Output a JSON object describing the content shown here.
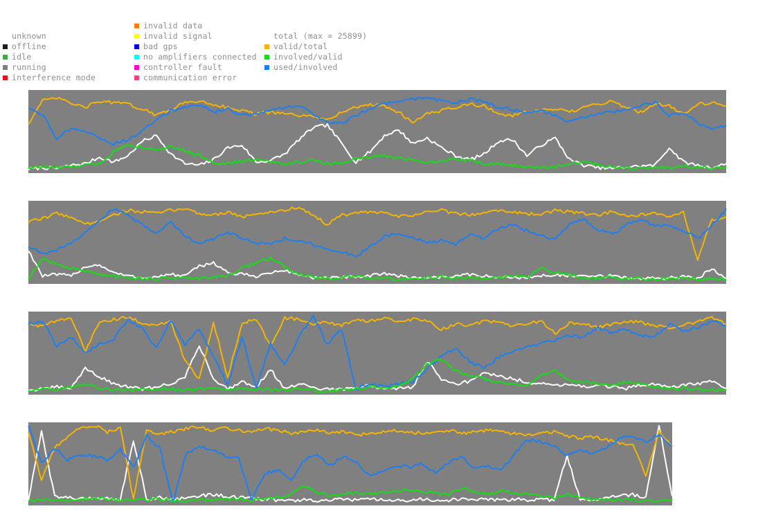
{
  "legend": {
    "status": [
      {
        "label": "unknown",
        "color": "transparent"
      },
      {
        "label": "offline",
        "color": "#1e1e1e"
      },
      {
        "label": "idle",
        "color": "#3faa3f"
      },
      {
        "label": "running",
        "color": "#7f7f7f"
      },
      {
        "label": "interference mode",
        "color": "#e8101a"
      }
    ],
    "errors": [
      {
        "label": "invalid data",
        "color": "#ff7f00"
      },
      {
        "label": "invalid signal",
        "color": "#ffff00"
      },
      {
        "label": "bad gps",
        "color": "#0000d8"
      },
      {
        "label": "no amplifiers connected",
        "color": "#00ffff"
      },
      {
        "label": "controller fault",
        "color": "#ff00d0"
      },
      {
        "label": "communication error",
        "color": "#ff4080"
      }
    ],
    "series": [
      {
        "label": "total (max = 25899)",
        "color": "transparent"
      },
      {
        "label": "valid/total",
        "color": "#f5b400"
      },
      {
        "label": "involved/valid",
        "color": "#10e010"
      },
      {
        "label": "used/involved",
        "color": "#1e7ff0"
      }
    ]
  },
  "chart_data": [
    {
      "type": "line",
      "title": "",
      "background_status": "running",
      "x_count": 50,
      "ylim": [
        0,
        1
      ],
      "series": [
        {
          "name": "total (max = 25899)",
          "color": "#ffffff",
          "values": [
            0.03,
            0.05,
            0.04,
            0.08,
            0.1,
            0.18,
            0.12,
            0.2,
            0.38,
            0.45,
            0.22,
            0.1,
            0.08,
            0.15,
            0.3,
            0.33,
            0.12,
            0.14,
            0.22,
            0.4,
            0.55,
            0.58,
            0.35,
            0.12,
            0.25,
            0.45,
            0.52,
            0.35,
            0.42,
            0.3,
            0.2,
            0.15,
            0.22,
            0.38,
            0.4,
            0.2,
            0.33,
            0.42,
            0.15,
            0.08,
            0.05,
            0.04,
            0.06,
            0.07,
            0.08,
            0.3,
            0.12,
            0.08,
            0.05,
            0.1
          ]
        },
        {
          "name": "valid/total",
          "color": "#f5b400",
          "values": [
            0.6,
            0.88,
            0.92,
            0.85,
            0.8,
            0.88,
            0.86,
            0.84,
            0.78,
            0.7,
            0.78,
            0.86,
            0.88,
            0.84,
            0.8,
            0.76,
            0.72,
            0.74,
            0.72,
            0.7,
            0.68,
            0.66,
            0.74,
            0.8,
            0.84,
            0.82,
            0.74,
            0.62,
            0.72,
            0.76,
            0.8,
            0.84,
            0.82,
            0.72,
            0.7,
            0.74,
            0.76,
            0.78,
            0.74,
            0.8,
            0.84,
            0.88,
            0.8,
            0.74,
            0.85,
            0.82,
            0.72,
            0.84,
            0.86,
            0.82
          ]
        },
        {
          "name": "involved/valid",
          "color": "#10e010",
          "values": [
            0.05,
            0.06,
            0.05,
            0.06,
            0.08,
            0.1,
            0.25,
            0.35,
            0.3,
            0.28,
            0.32,
            0.26,
            0.2,
            0.12,
            0.1,
            0.13,
            0.15,
            0.12,
            0.1,
            0.12,
            0.14,
            0.1,
            0.11,
            0.16,
            0.18,
            0.2,
            0.17,
            0.15,
            0.12,
            0.13,
            0.16,
            0.14,
            0.1,
            0.09,
            0.08,
            0.06,
            0.05,
            0.06,
            0.1,
            0.12,
            0.09,
            0.06,
            0.05,
            0.05,
            0.06,
            0.05,
            0.07,
            0.06,
            0.05,
            0.06
          ]
        },
        {
          "name": "used/involved",
          "color": "#1e7ff0",
          "values": [
            0.8,
            0.72,
            0.4,
            0.55,
            0.5,
            0.42,
            0.35,
            0.4,
            0.5,
            0.65,
            0.76,
            0.8,
            0.82,
            0.75,
            0.78,
            0.7,
            0.72,
            0.76,
            0.8,
            0.82,
            0.72,
            0.62,
            0.6,
            0.7,
            0.78,
            0.85,
            0.86,
            0.9,
            0.92,
            0.88,
            0.86,
            0.9,
            0.88,
            0.8,
            0.78,
            0.72,
            0.76,
            0.7,
            0.62,
            0.68,
            0.72,
            0.74,
            0.78,
            0.82,
            0.86,
            0.7,
            0.74,
            0.6,
            0.52,
            0.58
          ]
        }
      ]
    },
    {
      "type": "line",
      "title": "",
      "background_status": "running",
      "x_count": 50,
      "ylim": [
        0,
        1
      ],
      "series": [
        {
          "name": "total (max = 25899)",
          "color": "#ffffff",
          "values": [
            0.4,
            0.08,
            0.1,
            0.08,
            0.2,
            0.22,
            0.12,
            0.08,
            0.06,
            0.07,
            0.1,
            0.08,
            0.2,
            0.25,
            0.12,
            0.1,
            0.08,
            0.12,
            0.15,
            0.1,
            0.06,
            0.05,
            0.07,
            0.06,
            0.08,
            0.12,
            0.08,
            0.06,
            0.06,
            0.07,
            0.08,
            0.1,
            0.08,
            0.06,
            0.07,
            0.06,
            0.08,
            0.1,
            0.08,
            0.07,
            0.08,
            0.08,
            0.06,
            0.05,
            0.05,
            0.06,
            0.07,
            0.05,
            0.18,
            0.05
          ]
        },
        {
          "name": "valid/total",
          "color": "#f5b400",
          "values": [
            0.75,
            0.8,
            0.86,
            0.82,
            0.72,
            0.78,
            0.84,
            0.9,
            0.88,
            0.86,
            0.9,
            0.92,
            0.86,
            0.84,
            0.88,
            0.82,
            0.84,
            0.88,
            0.9,
            0.94,
            0.84,
            0.72,
            0.84,
            0.86,
            0.88,
            0.86,
            0.82,
            0.84,
            0.88,
            0.9,
            0.86,
            0.84,
            0.88,
            0.9,
            0.88,
            0.86,
            0.84,
            0.9,
            0.88,
            0.86,
            0.84,
            0.88,
            0.82,
            0.84,
            0.86,
            0.8,
            0.88,
            0.28,
            0.78,
            0.82
          ]
        },
        {
          "name": "involved/valid",
          "color": "#10e010",
          "values": [
            0.05,
            0.3,
            0.22,
            0.18,
            0.14,
            0.1,
            0.08,
            0.06,
            0.05,
            0.05,
            0.06,
            0.05,
            0.05,
            0.06,
            0.08,
            0.18,
            0.25,
            0.3,
            0.2,
            0.1,
            0.06,
            0.05,
            0.06,
            0.08,
            0.06,
            0.05,
            0.04,
            0.05,
            0.06,
            0.07,
            0.05,
            0.06,
            0.05,
            0.06,
            0.08,
            0.06,
            0.18,
            0.12,
            0.1,
            0.06,
            0.05,
            0.06,
            0.05,
            0.05,
            0.04,
            0.05,
            0.06,
            0.04,
            0.05,
            0.04
          ]
        },
        {
          "name": "used/involved",
          "color": "#1e7ff0",
          "values": [
            0.45,
            0.35,
            0.4,
            0.5,
            0.62,
            0.78,
            0.92,
            0.84,
            0.72,
            0.62,
            0.75,
            0.58,
            0.48,
            0.55,
            0.62,
            0.55,
            0.5,
            0.48,
            0.55,
            0.52,
            0.48,
            0.42,
            0.38,
            0.32,
            0.45,
            0.58,
            0.6,
            0.55,
            0.5,
            0.52,
            0.48,
            0.6,
            0.55,
            0.68,
            0.72,
            0.65,
            0.58,
            0.55,
            0.72,
            0.8,
            0.65,
            0.6,
            0.72,
            0.78,
            0.7,
            0.72,
            0.65,
            0.55,
            0.7,
            0.92
          ]
        }
      ]
    },
    {
      "type": "line",
      "title": "",
      "background_status": "running",
      "x_count": 50,
      "ylim": [
        0,
        1
      ],
      "series": [
        {
          "name": "total (max = 25899)",
          "color": "#ffffff",
          "values": [
            0.04,
            0.05,
            0.08,
            0.06,
            0.32,
            0.2,
            0.12,
            0.08,
            0.05,
            0.08,
            0.12,
            0.2,
            0.6,
            0.18,
            0.05,
            0.15,
            0.08,
            0.3,
            0.05,
            0.12,
            0.06,
            0.05,
            0.05,
            0.06,
            0.1,
            0.05,
            0.06,
            0.08,
            0.4,
            0.18,
            0.12,
            0.15,
            0.25,
            0.22,
            0.18,
            0.14,
            0.12,
            0.1,
            0.12,
            0.08,
            0.1,
            0.08,
            0.06,
            0.1,
            0.12,
            0.08,
            0.1,
            0.12,
            0.15,
            0.06
          ]
        },
        {
          "name": "valid/total",
          "color": "#f5b400",
          "values": [
            0.86,
            0.84,
            0.9,
            0.94,
            0.52,
            0.9,
            0.92,
            0.94,
            0.88,
            0.84,
            0.9,
            0.4,
            0.18,
            0.88,
            0.2,
            0.88,
            0.92,
            0.6,
            0.94,
            0.92,
            0.86,
            0.88,
            0.84,
            0.92,
            0.9,
            0.94,
            0.88,
            0.92,
            0.9,
            0.8,
            0.86,
            0.84,
            0.9,
            0.88,
            0.84,
            0.86,
            0.9,
            0.74,
            0.88,
            0.86,
            0.82,
            0.86,
            0.9,
            0.88,
            0.84,
            0.82,
            0.84,
            0.9,
            0.94,
            0.86
          ]
        },
        {
          "name": "used/involved",
          "color": "#1e7ff0",
          "values": [
            0.86,
            0.9,
            0.58,
            0.7,
            0.5,
            0.62,
            0.68,
            0.92,
            0.8,
            0.55,
            0.92,
            0.6,
            0.8,
            0.45,
            0.1,
            0.7,
            0.05,
            0.62,
            0.35,
            0.7,
            0.97,
            0.6,
            0.8,
            0.05,
            0.12,
            0.08,
            0.12,
            0.14,
            0.3,
            0.48,
            0.55,
            0.4,
            0.3,
            0.45,
            0.52,
            0.58,
            0.62,
            0.66,
            0.72,
            0.7,
            0.82,
            0.75,
            0.8,
            0.72,
            0.7,
            0.86,
            0.78,
            0.82,
            0.9,
            0.84
          ]
        },
        {
          "name": "involved/valid",
          "color": "#10e010",
          "values": [
            0.04,
            0.06,
            0.05,
            0.08,
            0.12,
            0.06,
            0.05,
            0.04,
            0.05,
            0.06,
            0.05,
            0.04,
            0.05,
            0.06,
            0.04,
            0.05,
            0.04,
            0.05,
            0.04,
            0.05,
            0.04,
            0.03,
            0.04,
            0.05,
            0.08,
            0.06,
            0.1,
            0.18,
            0.36,
            0.42,
            0.28,
            0.22,
            0.18,
            0.14,
            0.12,
            0.08,
            0.22,
            0.28,
            0.15,
            0.14,
            0.12,
            0.1,
            0.14,
            0.12,
            0.08,
            0.06,
            0.06,
            0.05,
            0.04,
            0.05
          ]
        }
      ]
    },
    {
      "type": "line",
      "title": "",
      "background_status": "running",
      "x_count": 50,
      "ylim": [
        0,
        1
      ],
      "series": [
        {
          "name": "total (max = 25899)",
          "color": "#ffffff",
          "values": [
            0.05,
            0.9,
            0.1,
            0.08,
            0.06,
            0.08,
            0.07,
            0.06,
            0.8,
            0.06,
            0.08,
            0.06,
            0.08,
            0.1,
            0.12,
            0.1,
            0.08,
            0.07,
            0.06,
            0.05,
            0.04,
            0.05,
            0.04,
            0.05,
            0.06,
            0.05,
            0.06,
            0.05,
            0.04,
            0.05,
            0.06,
            0.05,
            0.05,
            0.06,
            0.05,
            0.06,
            0.05,
            0.06,
            0.05,
            0.06,
            0.05,
            0.6,
            0.05,
            0.06,
            0.08,
            0.1,
            0.12,
            0.08,
            0.98,
            0.1
          ]
        },
        {
          "name": "valid/total",
          "color": "#f5b400",
          "values": [
            0.9,
            0.3,
            0.7,
            0.85,
            0.95,
            0.98,
            0.9,
            0.95,
            0.05,
            0.92,
            0.88,
            0.9,
            0.94,
            0.96,
            0.92,
            0.95,
            0.92,
            0.9,
            0.94,
            0.92,
            0.88,
            0.9,
            0.92,
            0.88,
            0.9,
            0.86,
            0.88,
            0.9,
            0.92,
            0.9,
            0.88,
            0.9,
            0.92,
            0.88,
            0.9,
            0.92,
            0.9,
            0.88,
            0.86,
            0.88,
            0.9,
            0.85,
            0.82,
            0.84,
            0.8,
            0.76,
            0.74,
            0.35,
            0.9,
            0.72
          ]
        },
        {
          "name": "used/involved",
          "color": "#1e7ff0",
          "values": [
            0.98,
            0.5,
            0.7,
            0.55,
            0.62,
            0.6,
            0.55,
            0.68,
            0.45,
            0.85,
            0.7,
            0.02,
            0.62,
            0.72,
            0.68,
            0.6,
            0.58,
            0.05,
            0.38,
            0.42,
            0.3,
            0.55,
            0.62,
            0.48,
            0.6,
            0.52,
            0.35,
            0.42,
            0.48,
            0.46,
            0.5,
            0.38,
            0.52,
            0.58,
            0.45,
            0.48,
            0.42,
            0.62,
            0.8,
            0.78,
            0.72,
            0.6,
            0.68,
            0.62,
            0.7,
            0.82,
            0.85,
            0.78,
            0.86,
            0.72
          ]
        },
        {
          "name": "involved/valid",
          "color": "#10e010",
          "values": [
            0.04,
            0.05,
            0.04,
            0.05,
            0.06,
            0.08,
            0.06,
            0.05,
            0.04,
            0.05,
            0.06,
            0.05,
            0.04,
            0.05,
            0.05,
            0.06,
            0.07,
            0.05,
            0.06,
            0.08,
            0.12,
            0.22,
            0.15,
            0.1,
            0.12,
            0.14,
            0.12,
            0.15,
            0.16,
            0.18,
            0.15,
            0.14,
            0.12,
            0.2,
            0.15,
            0.12,
            0.16,
            0.14,
            0.12,
            0.1,
            0.08,
            0.12,
            0.08,
            0.06,
            0.05,
            0.06,
            0.05,
            0.04,
            0.05,
            0.06
          ]
        }
      ]
    }
  ],
  "colors": {
    "panel_bg": "#808080",
    "legend_text": "#909090"
  }
}
